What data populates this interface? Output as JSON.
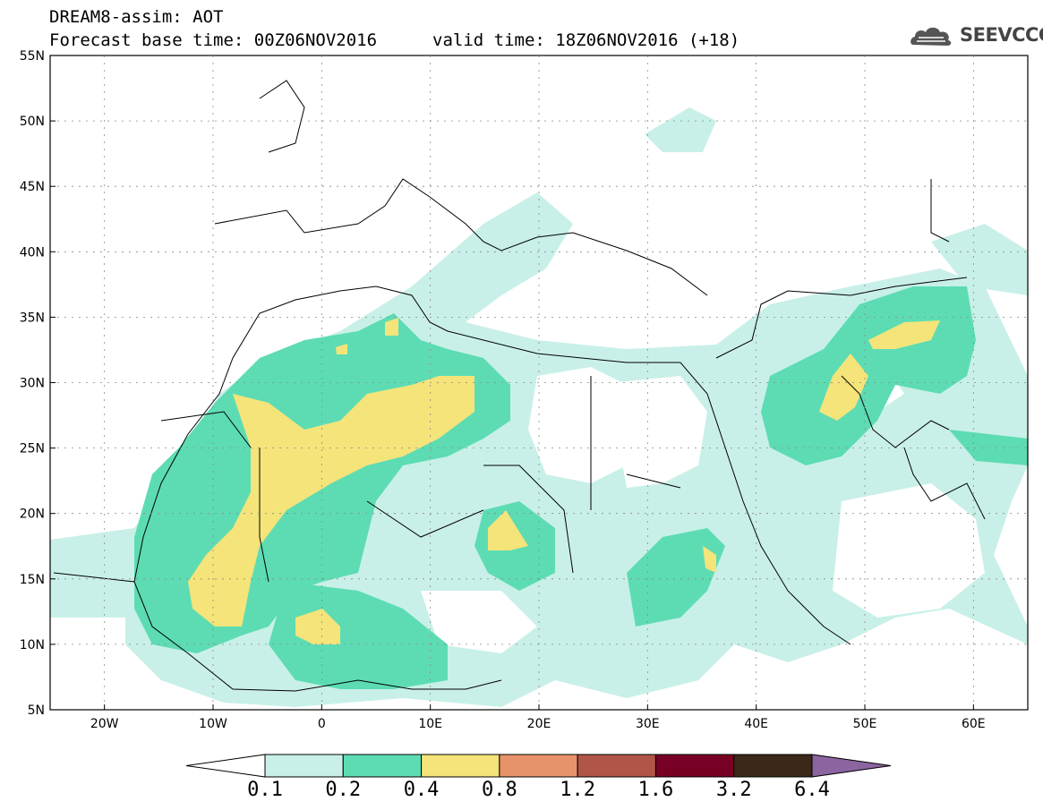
{
  "header": {
    "title": "DREAM8-assim: AOT",
    "base_time": "Forecast base time: 00Z06NOV2016",
    "valid_time": "valid time: 18Z06NOV2016 (+18)"
  },
  "logo": {
    "text": "SEEVCCC",
    "icon": "cloud-icon"
  },
  "map": {
    "lon_labels": [
      "20W",
      "10W",
      "0",
      "10E",
      "20E",
      "30E",
      "40E",
      "50E",
      "60E"
    ],
    "lat_labels": [
      "55N",
      "50N",
      "45N",
      "40N",
      "35N",
      "30N",
      "25N",
      "20N",
      "15N",
      "10N",
      "5N"
    ],
    "lon_range": [
      -25,
      65
    ],
    "lat_range": [
      5,
      55
    ]
  },
  "colorbar": {
    "levels": [
      "0.1",
      "0.2",
      "0.4",
      "0.8",
      "1.2",
      "1.6",
      "3.2",
      "6.4"
    ],
    "colors": [
      "#ffffff",
      "#c8f0e8",
      "#5ddcb4",
      "#f4e47a",
      "#e8926a",
      "#b05548",
      "#780024",
      "#3c2818",
      "#8c64a0"
    ]
  }
}
